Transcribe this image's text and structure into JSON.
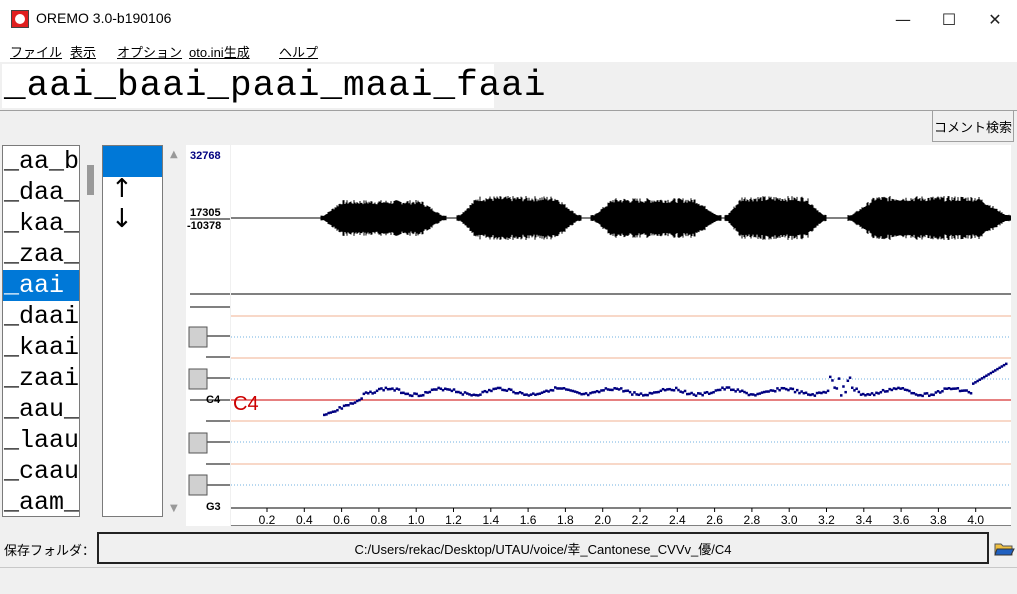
{
  "window": {
    "title": "OREMO 3.0-b190106",
    "minimize_glyph": "—",
    "maximize_glyph": "☐",
    "close_glyph": "✕"
  },
  "menu": [
    "ファイル",
    "表示",
    "オプション",
    "oto.ini生成",
    "ヘルプ"
  ],
  "current_item": "_aai_baai_paai_maai_faai",
  "comment_search_label": "コメント検索",
  "list_items": [
    "_aa_b",
    "_daa_",
    "_kaa_",
    "_zaa_",
    "_aai",
    "_daai",
    "_kaai",
    "_zaai",
    "_aau_",
    "_laau",
    "_caau",
    "_aam_"
  ],
  "selected_index": 4,
  "list2_arrows": [
    "↑",
    "↓"
  ],
  "waveform": {
    "max_label": "32768",
    "pos_label": "17305",
    "neg_label": "-10378"
  },
  "pitch": {
    "c4_axis_label": "C4",
    "c4_marker_label": "C4",
    "g3_label": "G3"
  },
  "x_ticks": [
    "0.2",
    "0.4",
    "0.6",
    "0.8",
    "1.0",
    "1.2",
    "1.4",
    "1.6",
    "1.8",
    "2.0",
    "2.2",
    "2.4",
    "2.6",
    "2.8",
    "3.0",
    "3.2",
    "3.4",
    "3.6",
    "3.8",
    "4.0"
  ],
  "save_folder": {
    "label": "保存フォルダ：",
    "path": "C:/Users/rekac/Desktop/UTAU/voice/幸_Cantonese_CVVv_優/C4"
  },
  "colors": {
    "accent": "#0078d7",
    "pitch_dots": "#000080",
    "c4_line": "#cc0000",
    "waveform": "#000000"
  }
}
